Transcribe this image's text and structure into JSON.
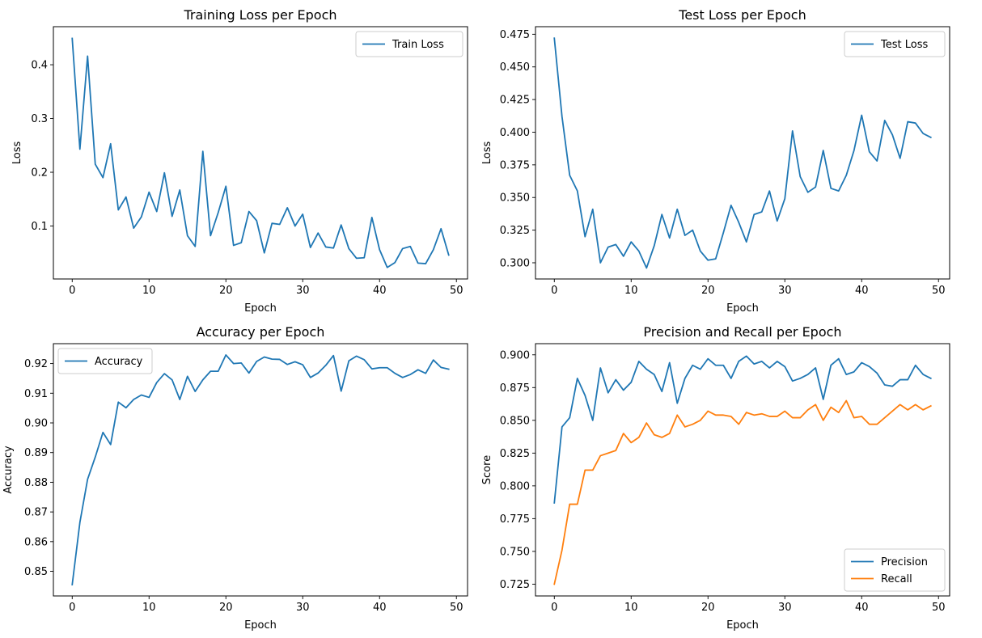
{
  "chart_data": [
    {
      "type": "line",
      "title": "Training Loss per Epoch",
      "xlabel": "Epoch",
      "ylabel": "Loss",
      "xlim": [
        -2.45,
        51.45
      ],
      "ylim": [
        0.0015,
        0.4708
      ],
      "xticks": [
        0,
        10,
        20,
        30,
        40,
        50
      ],
      "xtick_labels": [
        "0",
        "10",
        "20",
        "30",
        "40",
        "50"
      ],
      "yticks": [
        0.1,
        0.2,
        0.3,
        0.4
      ],
      "ytick_labels": [
        "0.1",
        "0.2",
        "0.3",
        "0.4"
      ],
      "legend_position": "upper right",
      "x": [
        0,
        1,
        2,
        3,
        4,
        5,
        6,
        7,
        8,
        9,
        10,
        11,
        12,
        13,
        14,
        15,
        16,
        17,
        18,
        19,
        20,
        21,
        22,
        23,
        24,
        25,
        26,
        27,
        28,
        29,
        30,
        31,
        32,
        33,
        34,
        35,
        36,
        37,
        38,
        39,
        40,
        41,
        42,
        43,
        44,
        45,
        46,
        47,
        48,
        49
      ],
      "series": [
        {
          "name": "Train Loss",
          "color": "#1f77b4",
          "values": [
            0.449,
            0.243,
            0.416,
            0.215,
            0.19,
            0.253,
            0.13,
            0.154,
            0.096,
            0.117,
            0.163,
            0.127,
            0.199,
            0.118,
            0.167,
            0.082,
            0.062,
            0.239,
            0.082,
            0.125,
            0.174,
            0.064,
            0.069,
            0.127,
            0.11,
            0.05,
            0.105,
            0.103,
            0.134,
            0.1,
            0.122,
            0.06,
            0.087,
            0.061,
            0.059,
            0.102,
            0.058,
            0.04,
            0.041,
            0.116,
            0.056,
            0.023,
            0.032,
            0.058,
            0.062,
            0.031,
            0.03,
            0.056,
            0.095,
            0.046
          ]
        }
      ]
    },
    {
      "type": "line",
      "title": "Test Loss per Epoch",
      "xlabel": "Epoch",
      "ylabel": "Loss",
      "xlim": [
        -2.45,
        51.45
      ],
      "ylim": [
        0.2876,
        0.4808
      ],
      "xticks": [
        0,
        10,
        20,
        30,
        40,
        50
      ],
      "xtick_labels": [
        "0",
        "10",
        "20",
        "30",
        "40",
        "50"
      ],
      "yticks": [
        0.3,
        0.325,
        0.35,
        0.375,
        0.4,
        0.425,
        0.45,
        0.475
      ],
      "ytick_labels": [
        "0.300",
        "0.325",
        "0.350",
        "0.375",
        "0.400",
        "0.425",
        "0.450",
        "0.475"
      ],
      "legend_position": "upper right",
      "x": [
        0,
        1,
        2,
        3,
        4,
        5,
        6,
        7,
        8,
        9,
        10,
        11,
        12,
        13,
        14,
        15,
        16,
        17,
        18,
        19,
        20,
        21,
        22,
        23,
        24,
        25,
        26,
        27,
        28,
        29,
        30,
        31,
        32,
        33,
        34,
        35,
        36,
        37,
        38,
        39,
        40,
        41,
        42,
        43,
        44,
        45,
        46,
        47,
        48,
        49
      ],
      "series": [
        {
          "name": "Test Loss",
          "color": "#1f77b4",
          "values": [
            0.472,
            0.412,
            0.367,
            0.355,
            0.32,
            0.341,
            0.3,
            0.312,
            0.314,
            0.305,
            0.316,
            0.309,
            0.296,
            0.313,
            0.337,
            0.319,
            0.341,
            0.321,
            0.325,
            0.309,
            0.302,
            0.303,
            0.323,
            0.344,
            0.331,
            0.316,
            0.337,
            0.339,
            0.355,
            0.332,
            0.349,
            0.401,
            0.366,
            0.354,
            0.358,
            0.386,
            0.357,
            0.355,
            0.367,
            0.386,
            0.413,
            0.385,
            0.378,
            0.409,
            0.398,
            0.38,
            0.408,
            0.407,
            0.399,
            0.396
          ]
        }
      ]
    },
    {
      "type": "line",
      "title": "Accuracy per Epoch",
      "xlabel": "Epoch",
      "ylabel": "Accuracy",
      "xlim": [
        -2.45,
        51.45
      ],
      "ylim": [
        0.8417,
        0.9267
      ],
      "xticks": [
        0,
        10,
        20,
        30,
        40,
        50
      ],
      "xtick_labels": [
        "0",
        "10",
        "20",
        "30",
        "40",
        "50"
      ],
      "yticks": [
        0.85,
        0.86,
        0.87,
        0.88,
        0.89,
        0.9,
        0.91,
        0.92
      ],
      "ytick_labels": [
        "0.85",
        "0.86",
        "0.87",
        "0.88",
        "0.89",
        "0.90",
        "0.91",
        "0.92"
      ],
      "legend_position": "upper left",
      "x": [
        0,
        1,
        2,
        3,
        4,
        5,
        6,
        7,
        8,
        9,
        10,
        11,
        12,
        13,
        14,
        15,
        16,
        17,
        18,
        19,
        20,
        21,
        22,
        23,
        24,
        25,
        26,
        27,
        28,
        29,
        30,
        31,
        32,
        33,
        34,
        35,
        36,
        37,
        38,
        39,
        40,
        41,
        42,
        43,
        44,
        45,
        46,
        47,
        48,
        49
      ],
      "series": [
        {
          "name": "Accuracy",
          "color": "#1f77b4",
          "values": [
            0.8455,
            0.8665,
            0.881,
            0.8885,
            0.8968,
            0.8927,
            0.907,
            0.9051,
            0.9079,
            0.9094,
            0.9086,
            0.9136,
            0.9166,
            0.9145,
            0.9079,
            0.9157,
            0.9106,
            0.9145,
            0.9174,
            0.9174,
            0.9229,
            0.92,
            0.9202,
            0.9168,
            0.9207,
            0.9222,
            0.9215,
            0.9214,
            0.9197,
            0.9206,
            0.9196,
            0.9153,
            0.9168,
            0.9194,
            0.9227,
            0.9107,
            0.9209,
            0.9225,
            0.9213,
            0.9182,
            0.9186,
            0.9186,
            0.9167,
            0.9153,
            0.9163,
            0.9179,
            0.9167,
            0.9212,
            0.9187,
            0.9181
          ]
        }
      ]
    },
    {
      "type": "line",
      "title": "Precision and Recall per Epoch",
      "xlabel": "Epoch",
      "ylabel": "Score",
      "xlim": [
        -2.45,
        51.45
      ],
      "ylim": [
        0.716,
        0.9085
      ],
      "xticks": [
        0,
        10,
        20,
        30,
        40,
        50
      ],
      "xtick_labels": [
        "0",
        "10",
        "20",
        "30",
        "40",
        "50"
      ],
      "yticks": [
        0.725,
        0.75,
        0.775,
        0.8,
        0.825,
        0.85,
        0.875,
        0.9
      ],
      "ytick_labels": [
        "0.725",
        "0.750",
        "0.775",
        "0.800",
        "0.825",
        "0.850",
        "0.875",
        "0.900"
      ],
      "legend_position": "lower right",
      "x": [
        0,
        1,
        2,
        3,
        4,
        5,
        6,
        7,
        8,
        9,
        10,
        11,
        12,
        13,
        14,
        15,
        16,
        17,
        18,
        19,
        20,
        21,
        22,
        23,
        24,
        25,
        26,
        27,
        28,
        29,
        30,
        31,
        32,
        33,
        34,
        35,
        36,
        37,
        38,
        39,
        40,
        41,
        42,
        43,
        44,
        45,
        46,
        47,
        48,
        49
      ],
      "series": [
        {
          "name": "Precision",
          "color": "#1f77b4",
          "values": [
            0.787,
            0.845,
            0.852,
            0.882,
            0.869,
            0.85,
            0.89,
            0.871,
            0.881,
            0.873,
            0.879,
            0.895,
            0.889,
            0.885,
            0.872,
            0.894,
            0.863,
            0.882,
            0.892,
            0.889,
            0.897,
            0.892,
            0.892,
            0.882,
            0.895,
            0.899,
            0.893,
            0.895,
            0.89,
            0.895,
            0.891,
            0.88,
            0.882,
            0.885,
            0.89,
            0.866,
            0.892,
            0.897,
            0.885,
            0.887,
            0.894,
            0.891,
            0.886,
            0.877,
            0.876,
            0.881,
            0.881,
            0.892,
            0.885,
            0.882
          ]
        },
        {
          "name": "Recall",
          "color": "#ff7f0e",
          "values": [
            0.725,
            0.751,
            0.786,
            0.786,
            0.812,
            0.812,
            0.823,
            0.825,
            0.827,
            0.84,
            0.833,
            0.837,
            0.848,
            0.839,
            0.837,
            0.84,
            0.854,
            0.845,
            0.847,
            0.85,
            0.857,
            0.854,
            0.854,
            0.853,
            0.847,
            0.856,
            0.854,
            0.855,
            0.853,
            0.853,
            0.857,
            0.852,
            0.852,
            0.858,
            0.862,
            0.85,
            0.86,
            0.856,
            0.865,
            0.852,
            0.853,
            0.847,
            0.847,
            0.852,
            0.857,
            0.862,
            0.858,
            0.862,
            0.858,
            0.861
          ]
        }
      ]
    }
  ]
}
